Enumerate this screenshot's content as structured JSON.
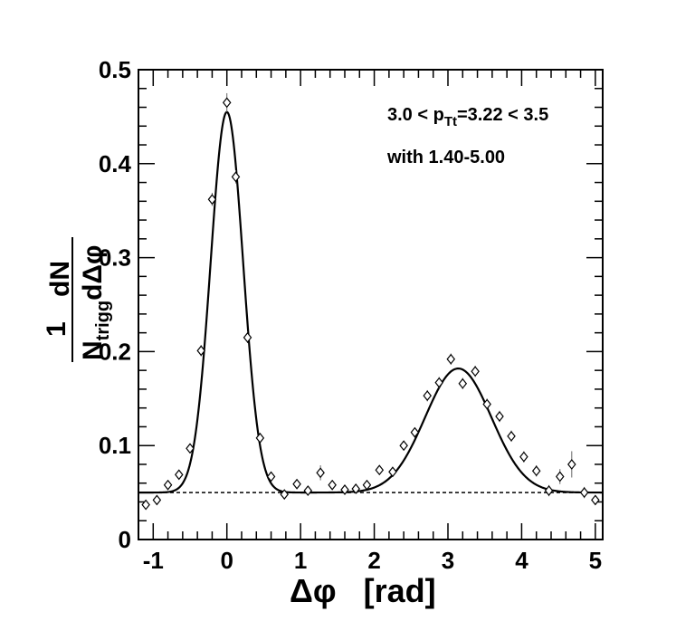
{
  "chart_data": {
    "type": "scatter",
    "title": "",
    "xlabel": "Δφ   [rad]",
    "ylabel": {
      "numerator": "1",
      "denominator_main": "N",
      "denominator_sub": "trigg",
      "dn": "dN",
      "dphi": "dΔφ"
    },
    "annotations": {
      "line1": "3.0 < p",
      "line1_sub": "Tt",
      "line1_rest": "=3.22 < 3.5",
      "line2": "with 1.40-5.00"
    },
    "xlim": [
      -1.2,
      5.1
    ],
    "ylim": [
      0,
      0.5
    ],
    "x_ticks": [
      -1,
      0,
      1,
      2,
      3,
      4,
      5
    ],
    "y_ticks": [
      0,
      0.1,
      0.2,
      0.3,
      0.4,
      0.5
    ],
    "x_tick_labels": [
      "-1",
      "0",
      "1",
      "2",
      "3",
      "4",
      "5"
    ],
    "y_tick_labels": [
      "0",
      "0.1",
      "0.2",
      "0.3",
      "0.4",
      "0.5"
    ],
    "points": [
      {
        "x": -1.1,
        "y": 0.037,
        "err": 0.004
      },
      {
        "x": -0.95,
        "y": 0.042,
        "err": 0.004
      },
      {
        "x": -0.8,
        "y": 0.058,
        "err": 0.004
      },
      {
        "x": -0.65,
        "y": 0.069,
        "err": 0.005
      },
      {
        "x": -0.5,
        "y": 0.097,
        "err": 0.005
      },
      {
        "x": -0.35,
        "y": 0.201,
        "err": 0.006
      },
      {
        "x": -0.2,
        "y": 0.362,
        "err": 0.007
      },
      {
        "x": 0.0,
        "y": 0.465,
        "err": 0.01
      },
      {
        "x": 0.12,
        "y": 0.386,
        "err": 0.007
      },
      {
        "x": 0.28,
        "y": 0.215,
        "err": 0.006
      },
      {
        "x": 0.45,
        "y": 0.108,
        "err": 0.005
      },
      {
        "x": 0.6,
        "y": 0.067,
        "err": 0.005
      },
      {
        "x": 0.78,
        "y": 0.048,
        "err": 0.004
      },
      {
        "x": 0.95,
        "y": 0.059,
        "err": 0.004
      },
      {
        "x": 1.1,
        "y": 0.052,
        "err": 0.004
      },
      {
        "x": 1.27,
        "y": 0.071,
        "err": 0.008
      },
      {
        "x": 1.43,
        "y": 0.058,
        "err": 0.005
      },
      {
        "x": 1.6,
        "y": 0.053,
        "err": 0.005
      },
      {
        "x": 1.75,
        "y": 0.054,
        "err": 0.005
      },
      {
        "x": 1.9,
        "y": 0.058,
        "err": 0.005
      },
      {
        "x": 2.07,
        "y": 0.074,
        "err": 0.005
      },
      {
        "x": 2.25,
        "y": 0.072,
        "err": 0.005
      },
      {
        "x": 2.4,
        "y": 0.1,
        "err": 0.005
      },
      {
        "x": 2.55,
        "y": 0.114,
        "err": 0.005
      },
      {
        "x": 2.72,
        "y": 0.153,
        "err": 0.006
      },
      {
        "x": 2.88,
        "y": 0.167,
        "err": 0.006
      },
      {
        "x": 3.04,
        "y": 0.192,
        "err": 0.006
      },
      {
        "x": 3.2,
        "y": 0.166,
        "err": 0.006
      },
      {
        "x": 3.37,
        "y": 0.179,
        "err": 0.006
      },
      {
        "x": 3.53,
        "y": 0.144,
        "err": 0.006
      },
      {
        "x": 3.7,
        "y": 0.131,
        "err": 0.006
      },
      {
        "x": 3.86,
        "y": 0.11,
        "err": 0.006
      },
      {
        "x": 4.03,
        "y": 0.088,
        "err": 0.006
      },
      {
        "x": 4.2,
        "y": 0.073,
        "err": 0.006
      },
      {
        "x": 4.37,
        "y": 0.052,
        "err": 0.006
      },
      {
        "x": 4.52,
        "y": 0.067,
        "err": 0.008
      },
      {
        "x": 4.68,
        "y": 0.08,
        "err": 0.014
      },
      {
        "x": 4.85,
        "y": 0.05,
        "err": 0.006
      },
      {
        "x": 5.0,
        "y": 0.042,
        "err": 0.005
      }
    ],
    "fit": {
      "baseline": 0.05,
      "near_amp": 0.405,
      "near_mean": 0.0,
      "near_sigma": 0.22,
      "away_amp": 0.132,
      "away_mean": 3.14,
      "away_sigma": 0.45
    },
    "baseline_style": "dotted",
    "grid": false,
    "legend": "none"
  }
}
